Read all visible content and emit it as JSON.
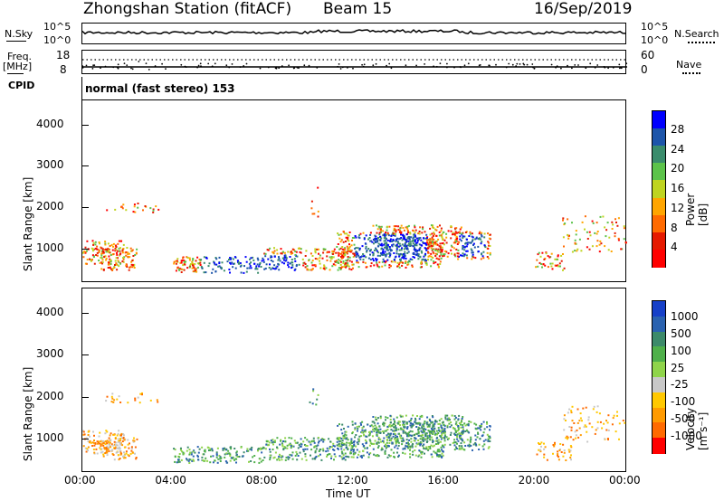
{
  "header": {
    "station": "Zhongshan Station (fitACF)",
    "beam": "Beam 15",
    "date": "16/Sep/2019"
  },
  "top_panels": {
    "nsky_label": "N.Sky",
    "nsky_top": "10^5",
    "nsky_bottom": "10^0",
    "nsearch_label": "N.Search",
    "nsearch_top": "10^5",
    "nsearch_bottom": "10^0",
    "freq_label": "Freq.",
    "freq_unit": "[MHz]",
    "freq_top": "18",
    "freq_bottom": "8",
    "nave_label": "Nave",
    "nave_top": "60",
    "nave_bottom": "0",
    "cpid_label": "CPID",
    "cpid_text": "normal (fast stereo) 153"
  },
  "chart_data": [
    {
      "type": "heatmap",
      "name": "power",
      "ylabel": "Slant Range [km]",
      "yticks": [
        "1000",
        "2000",
        "3000",
        "4000"
      ],
      "ylim": [
        200,
        4600
      ],
      "colorbar_label": "Power [dB]",
      "colorbar_ticks": [
        "4",
        "8",
        "12",
        "16",
        "20",
        "24",
        "28"
      ],
      "colorbar_colors": [
        "#0000ff",
        "#1d55aa",
        "#3a8c6c",
        "#5cc34a",
        "#bfd420",
        "#ffa500",
        "#ff6a00",
        "#e51a00",
        "#ff0000"
      ]
    },
    {
      "type": "heatmap",
      "name": "velocity",
      "ylabel": "Slant Range [km]",
      "yticks": [
        "1000",
        "2000",
        "3000",
        "4000"
      ],
      "ylim": [
        200,
        4600
      ],
      "colorbar_label": "Velocity [m s⁻¹]",
      "colorbar_ticks": [
        "1000",
        "500",
        "100",
        "25",
        "-25",
        "-100",
        "-500",
        "-1000"
      ],
      "colorbar_colors": [
        "#1640c8",
        "#2a62b0",
        "#3c8a6a",
        "#4fb04a",
        "#8fd44a",
        "#c8c8c8",
        "#ffc800",
        "#ff9a00",
        "#ff6a00",
        "#ff0000"
      ]
    }
  ],
  "xaxis": {
    "label": "Time UT",
    "ticks": [
      "00:00",
      "04:00",
      "08:00",
      "12:00",
      "16:00",
      "20:00",
      "00:00"
    ]
  }
}
